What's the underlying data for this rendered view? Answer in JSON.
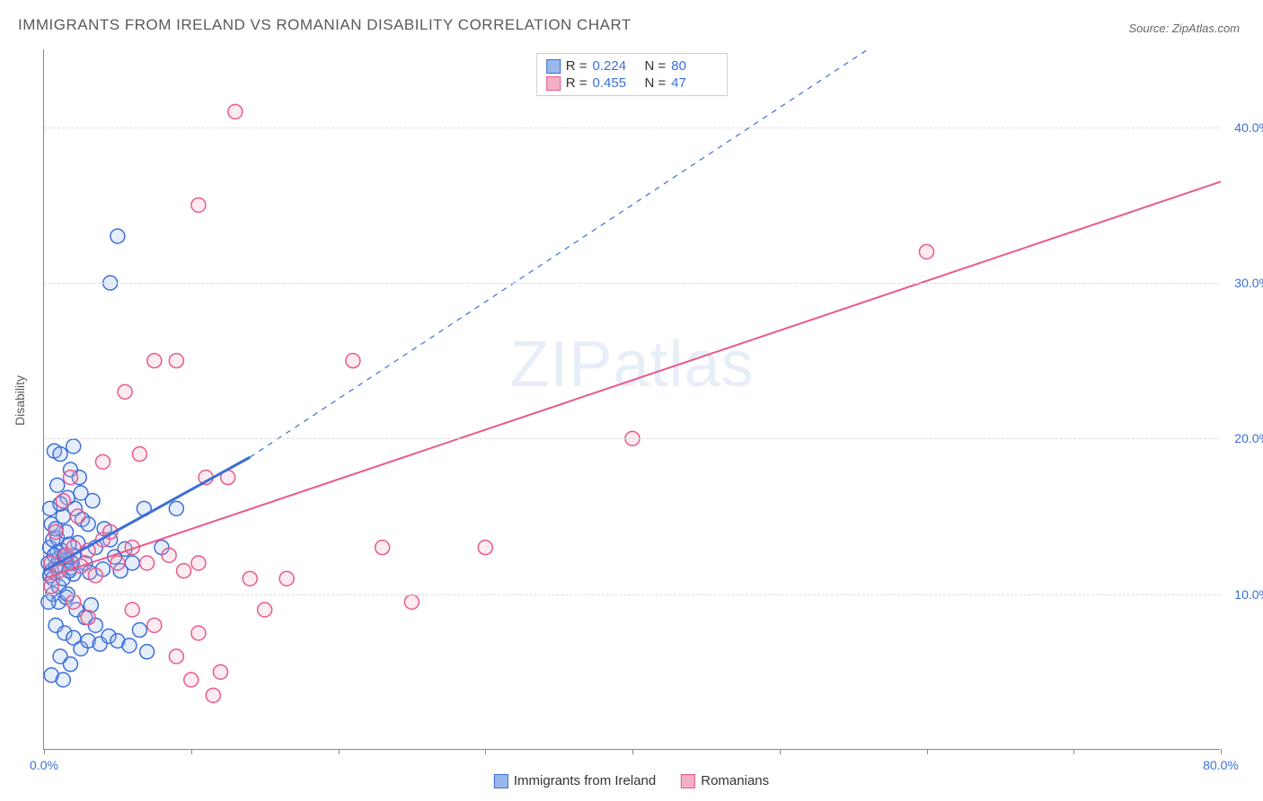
{
  "title": "IMMIGRANTS FROM IRELAND VS ROMANIAN DISABILITY CORRELATION CHART",
  "source": "Source: ZipAtlas.com",
  "y_axis_label": "Disability",
  "watermark": {
    "prefix": "ZIP",
    "suffix": "atlas"
  },
  "plot": {
    "type": "scatter",
    "background_color": "#ffffff",
    "grid_color": "#dddddd",
    "axis_color": "#888888",
    "xlim": [
      0,
      80
    ],
    "ylim": [
      0,
      45
    ],
    "x_ticks": [
      0,
      10,
      20,
      30,
      40,
      50,
      60,
      70,
      80
    ],
    "x_tick_labels": {
      "0": "0.0%",
      "80": "80.0%"
    },
    "y_ticks": [
      10,
      20,
      30,
      40
    ],
    "y_tick_labels": {
      "10": "10.0%",
      "20": "20.0%",
      "30": "30.0%",
      "40": "40.0%"
    },
    "marker_radius": 8,
    "marker_stroke_width": 1.5,
    "marker_fill_opacity": 0.25
  },
  "series": [
    {
      "key": "ireland",
      "label": "Immigrants from Ireland",
      "color_stroke": "#3b6fd8",
      "color_fill": "#9ab7ea",
      "stats": {
        "R": "0.224",
        "N": "80"
      },
      "regression": {
        "x1": 0,
        "y1": 11.5,
        "x2": 14,
        "y2": 18.8,
        "dashed_extend_to_x": 56,
        "dashed_extend_to_y": 45,
        "line_width": 2
      },
      "points": [
        [
          0.3,
          12.0
        ],
        [
          0.5,
          11.5
        ],
        [
          0.8,
          11.8
        ],
        [
          1.0,
          12.3
        ],
        [
          0.4,
          13.0
        ],
        [
          0.9,
          13.6
        ],
        [
          1.2,
          12.8
        ],
        [
          0.6,
          11.0
        ],
        [
          1.5,
          12.2
        ],
        [
          1.8,
          11.7
        ],
        [
          2.0,
          12.5
        ],
        [
          2.3,
          13.3
        ],
        [
          2.8,
          12.0
        ],
        [
          3.1,
          11.4
        ],
        [
          0.5,
          14.5
        ],
        [
          1.3,
          15.0
        ],
        [
          1.6,
          16.2
        ],
        [
          2.1,
          15.5
        ],
        [
          0.9,
          17.0
        ],
        [
          1.8,
          18.0
        ],
        [
          2.4,
          17.5
        ],
        [
          0.7,
          19.2
        ],
        [
          1.1,
          19.0
        ],
        [
          1.5,
          14.0
        ],
        [
          3.5,
          13.0
        ],
        [
          4.0,
          11.6
        ],
        [
          4.8,
          12.4
        ],
        [
          5.5,
          12.9
        ],
        [
          0.6,
          10.0
        ],
        [
          1.0,
          9.5
        ],
        [
          1.5,
          9.8
        ],
        [
          2.2,
          9.0
        ],
        [
          2.8,
          8.5
        ],
        [
          3.2,
          9.3
        ],
        [
          0.8,
          8.0
        ],
        [
          1.4,
          7.5
        ],
        [
          2.0,
          7.2
        ],
        [
          2.5,
          6.5
        ],
        [
          3.0,
          7.0
        ],
        [
          3.8,
          6.8
        ],
        [
          4.4,
          7.3
        ],
        [
          1.1,
          6.0
        ],
        [
          1.8,
          5.5
        ],
        [
          3.5,
          8.0
        ],
        [
          5.0,
          7.0
        ],
        [
          5.8,
          6.7
        ],
        [
          6.5,
          7.7
        ],
        [
          7.0,
          6.3
        ],
        [
          0.5,
          4.8
        ],
        [
          1.3,
          4.5
        ],
        [
          2.0,
          11.3
        ],
        [
          2.6,
          14.8
        ],
        [
          3.3,
          16.0
        ],
        [
          4.1,
          14.2
        ],
        [
          0.9,
          12.7
        ],
        [
          1.7,
          13.2
        ],
        [
          0.4,
          15.5
        ],
        [
          2.0,
          19.5
        ],
        [
          2.5,
          16.5
        ],
        [
          3.0,
          14.5
        ],
        [
          4.5,
          13.5
        ],
        [
          5.2,
          11.5
        ],
        [
          6.0,
          12.0
        ],
        [
          6.8,
          15.5
        ],
        [
          8.0,
          13.0
        ],
        [
          9.0,
          15.5
        ],
        [
          4.5,
          30.0
        ],
        [
          5.0,
          33.0
        ],
        [
          0.4,
          11.2
        ],
        [
          0.7,
          12.5
        ],
        [
          1.0,
          10.5
        ],
        [
          1.3,
          11.0
        ],
        [
          1.6,
          10.0
        ],
        [
          1.9,
          12.0
        ],
        [
          0.3,
          9.5
        ],
        [
          0.6,
          13.5
        ],
        [
          0.8,
          14.2
        ],
        [
          1.1,
          15.8
        ],
        [
          1.4,
          12.5
        ],
        [
          1.7,
          11.5
        ]
      ]
    },
    {
      "key": "romanians",
      "label": "Romanians",
      "color_stroke": "#e85a8a",
      "color_fill": "#f3b0c6",
      "stats": {
        "R": "0.455",
        "N": "47"
      },
      "regression": {
        "x1": 0,
        "y1": 11.0,
        "x2": 80,
        "y2": 36.5,
        "line_width": 2
      },
      "points": [
        [
          0.5,
          12.0
        ],
        [
          1.0,
          11.5
        ],
        [
          1.5,
          12.5
        ],
        [
          2.0,
          13.0
        ],
        [
          2.5,
          11.8
        ],
        [
          3.0,
          12.8
        ],
        [
          3.5,
          11.2
        ],
        [
          4.0,
          13.5
        ],
        [
          0.8,
          14.0
        ],
        [
          1.3,
          16.0
        ],
        [
          1.8,
          17.5
        ],
        [
          2.3,
          15.0
        ],
        [
          5.0,
          12.0
        ],
        [
          6.0,
          13.0
        ],
        [
          7.0,
          12.0
        ],
        [
          8.5,
          12.5
        ],
        [
          9.5,
          11.5
        ],
        [
          10.5,
          12.0
        ],
        [
          6.5,
          19.0
        ],
        [
          7.5,
          25.0
        ],
        [
          9.0,
          25.0
        ],
        [
          10.5,
          35.0
        ],
        [
          11.0,
          17.5
        ],
        [
          12.5,
          17.5
        ],
        [
          13.0,
          41.0
        ],
        [
          14.0,
          11.0
        ],
        [
          15.0,
          9.0
        ],
        [
          16.5,
          11.0
        ],
        [
          5.5,
          23.0
        ],
        [
          21.0,
          25.0
        ],
        [
          23.0,
          13.0
        ],
        [
          25.0,
          9.5
        ],
        [
          30.0,
          13.0
        ],
        [
          40.0,
          20.0
        ],
        [
          60.0,
          32.0
        ],
        [
          11.5,
          3.5
        ],
        [
          10.0,
          4.5
        ],
        [
          12.0,
          5.0
        ],
        [
          6.0,
          9.0
        ],
        [
          7.5,
          8.0
        ],
        [
          9.0,
          6.0
        ],
        [
          10.5,
          7.5
        ],
        [
          2.0,
          9.5
        ],
        [
          3.0,
          8.5
        ],
        [
          4.0,
          18.5
        ],
        [
          4.5,
          14.0
        ],
        [
          0.5,
          10.5
        ]
      ]
    }
  ],
  "stats_box": {
    "r_label": "R =",
    "n_label": "N ="
  },
  "legend": {
    "items": [
      {
        "key": "ireland",
        "label": "Immigrants from Ireland"
      },
      {
        "key": "romanians",
        "label": "Romanians"
      }
    ]
  }
}
